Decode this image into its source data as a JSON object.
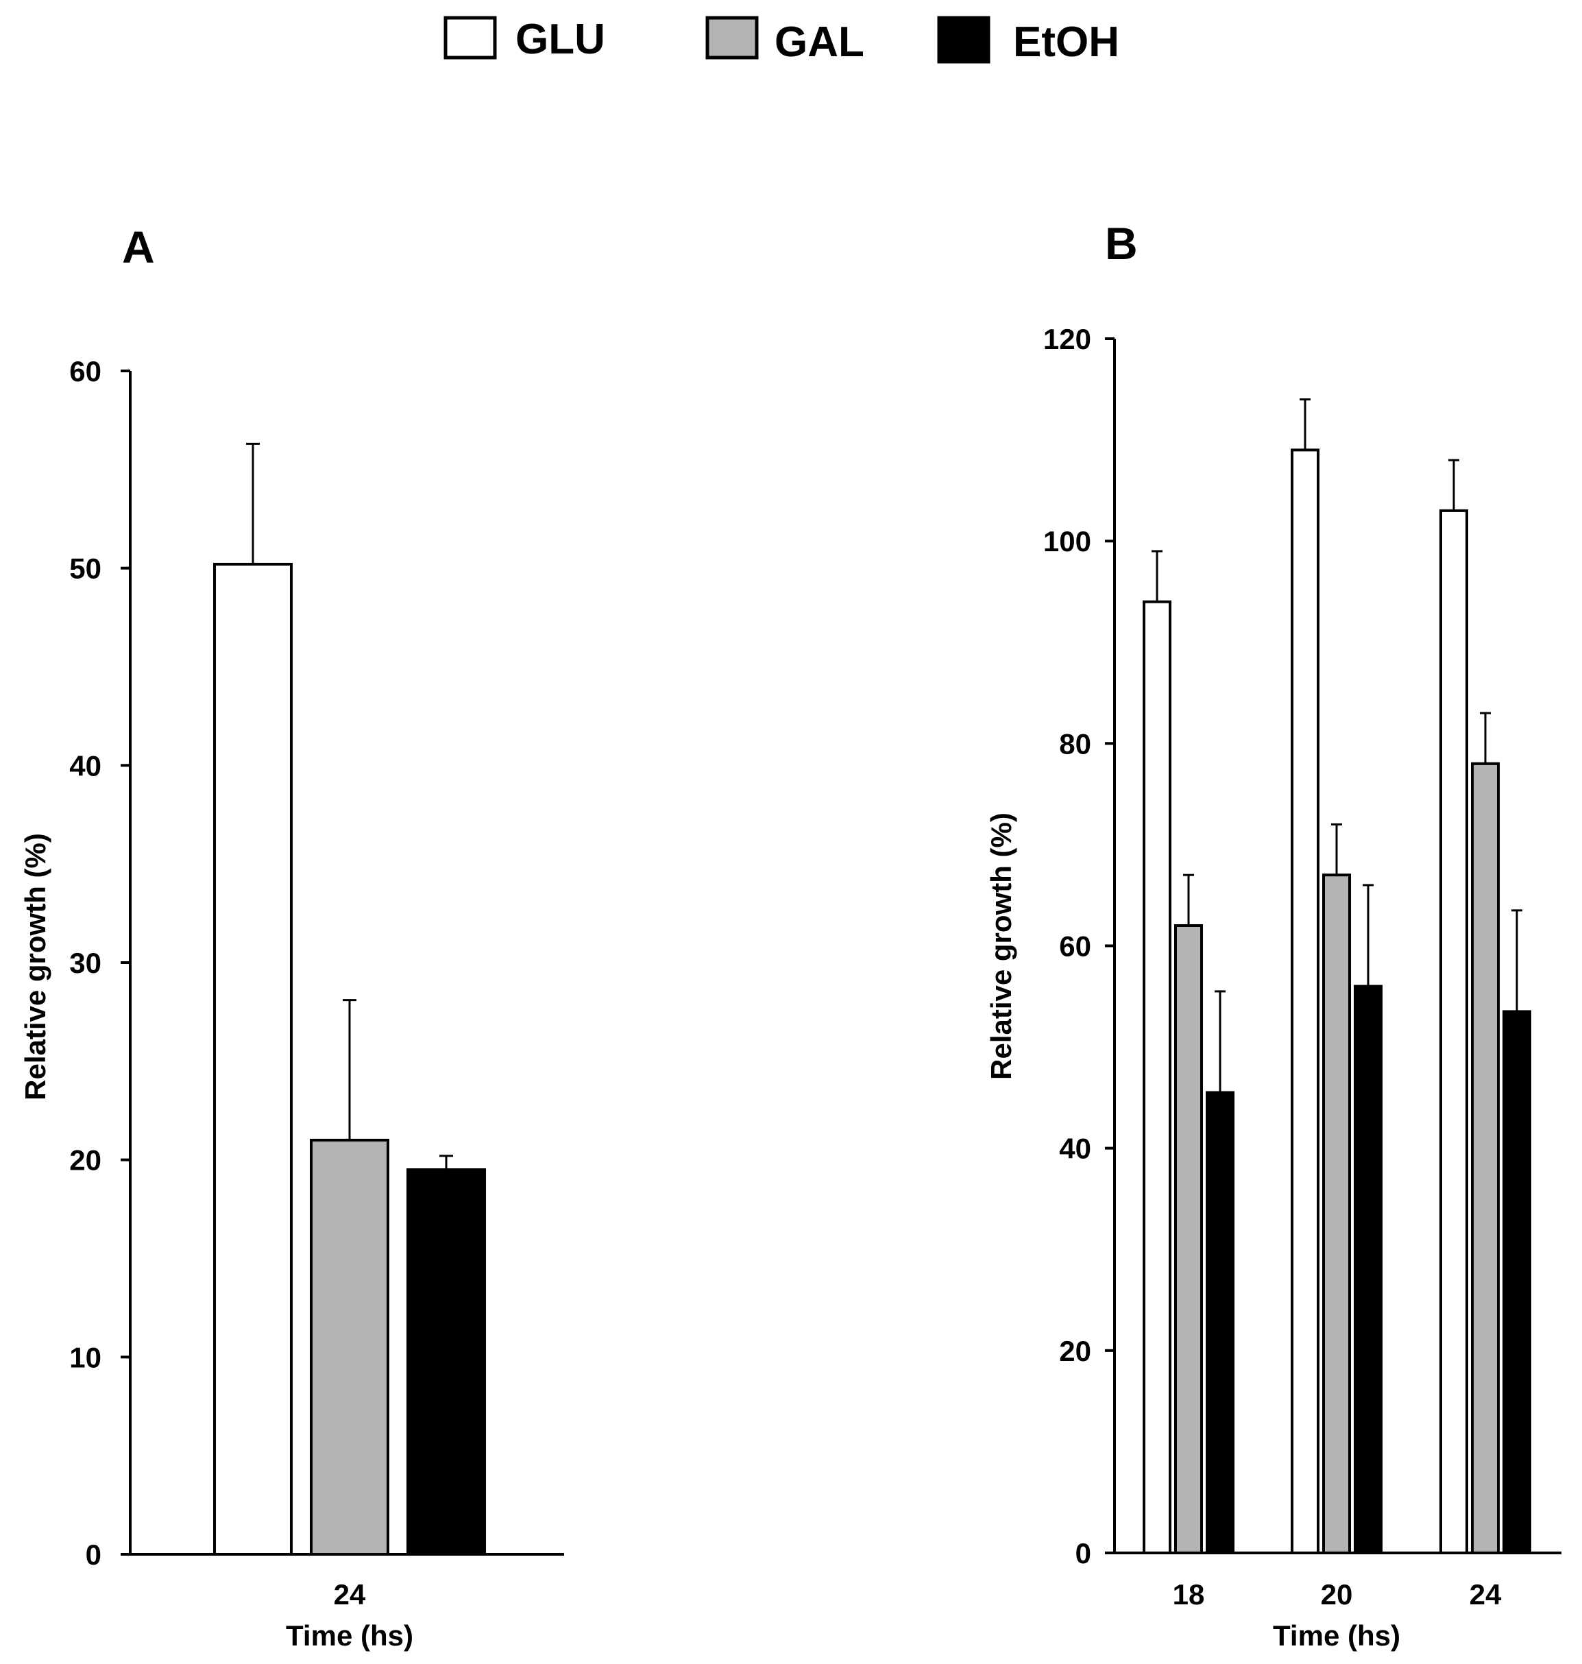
{
  "chart_data": [
    {
      "type": "bar",
      "panel_label": "A",
      "categories": [
        "24"
      ],
      "series": [
        {
          "name": "GLU",
          "values": [
            50.2
          ],
          "errors": [
            6.1
          ]
        },
        {
          "name": "GAL",
          "values": [
            21.0
          ],
          "errors": [
            7.1
          ]
        },
        {
          "name": "EtOH",
          "values": [
            19.5
          ],
          "errors": [
            0.7
          ]
        }
      ],
      "xlabel": "Time (hs)",
      "ylabel": "Relative growth (%)",
      "ylim": [
        0,
        60
      ],
      "yticks": [
        "0",
        "10",
        "20",
        "30",
        "40",
        "50",
        "60"
      ],
      "grid": false
    },
    {
      "type": "bar",
      "panel_label": "B",
      "categories": [
        "18",
        "20",
        "24"
      ],
      "series": [
        {
          "name": "GLU",
          "values": [
            94,
            109,
            103
          ],
          "errors": [
            5,
            5,
            5
          ]
        },
        {
          "name": "GAL",
          "values": [
            62,
            67,
            78
          ],
          "errors": [
            5,
            5,
            5
          ]
        },
        {
          "name": "EtOH",
          "values": [
            45.5,
            56,
            53.5
          ],
          "errors": [
            10,
            10,
            10
          ]
        }
      ],
      "xlabel": "Time (hs)",
      "ylabel": "Relative growth (%)",
      "ylim": [
        0,
        120
      ],
      "yticks": [
        "0",
        "20",
        "40",
        "60",
        "80",
        "100",
        "120"
      ],
      "grid": false
    }
  ],
  "legend": {
    "placement": "top-center",
    "items": [
      {
        "label": "GLU",
        "color": "#ffffff"
      },
      {
        "label": "GAL",
        "color": "#b5b3b3"
      },
      {
        "label": "EtOH",
        "color": "#000000"
      }
    ]
  },
  "colors": {
    "GLU": "#ffffff",
    "GAL": "#b5b3b3",
    "EtOH": "#000000",
    "stroke": "#000000"
  }
}
